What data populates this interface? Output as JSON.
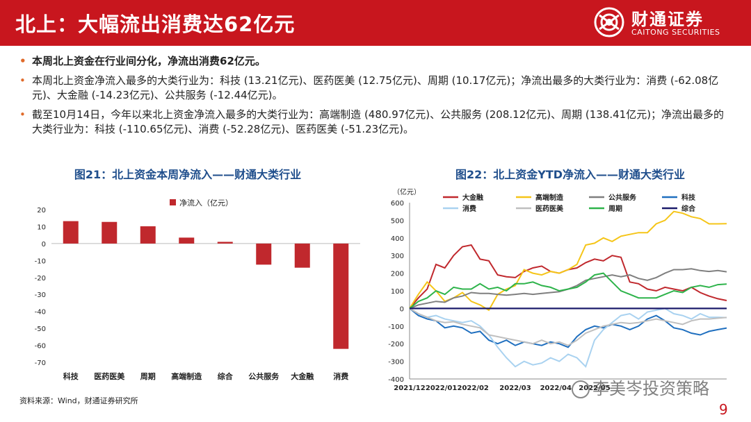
{
  "header": {
    "title": "北上：大幅流出消费达62亿元",
    "logo_text_cn": "财通证券",
    "logo_text_en": "CAITONG SECURITIES"
  },
  "bullets": [
    "本周北上资金在行业间分化，净流出消费62亿元。",
    "本周北上资金净流入最多的大类行业为：科技 (13.21亿元)、医药医美 (12.75亿元)、周期 (10.17亿元)；净流出最多的大类行业为：消费 (-62.08亿元)、大金融 (-14.23亿元)、公共服务 (-12.44亿元)。",
    "截至10月14日，今年以来北上资金净流入最多的大类行业为：高端制造 (480.97亿元)、公共服务 (208.12亿元)、周期 (138.41亿元)；净流出最多的大类行业为：科技 (-110.65亿元)、消费 (-52.28亿元)、医药医美 (-51.23亿元)。"
  ],
  "colors": {
    "brand_red": "#c8161e",
    "title_blue": "#1f4e8c",
    "bar": "#c0282d"
  },
  "chart_data": [
    {
      "type": "bar",
      "title": "图21：北上资金本周净流入——财通大类行业",
      "legend": "净流入（亿元）",
      "categories": [
        "科技",
        "医药医美",
        "周期",
        "高端制造",
        "综合",
        "公共服务",
        "大金融",
        "消费"
      ],
      "values": [
        13.21,
        12.75,
        10.17,
        3.5,
        1.0,
        -12.44,
        -14.23,
        -62.08
      ],
      "ylim": [
        -70,
        20
      ],
      "yticks": [
        20,
        10,
        0,
        -10,
        -20,
        -30,
        -40,
        -50,
        -60,
        -70
      ]
    },
    {
      "type": "line",
      "title": "图22：北上资金YTD净流入——财通大类行业",
      "yunit": "（亿元）",
      "ylim": [
        -400,
        600
      ],
      "yticks": [
        600,
        500,
        400,
        300,
        200,
        100,
        0,
        -100,
        -200,
        -300,
        -400
      ],
      "xticks": [
        "2021/12",
        "2022/01",
        "2022/02",
        "2022/03",
        "2022/04",
        "2022/05"
      ],
      "xtick_positions": [
        0,
        3.6,
        7.2,
        12,
        16.6,
        21
      ],
      "series": [
        {
          "name": "大金融",
          "color": "#c0282d",
          "values": [
            0,
            60,
            110,
            250,
            230,
            300,
            350,
            360,
            280,
            270,
            190,
            180,
            175,
            210,
            230,
            240,
            210,
            200,
            220,
            230,
            260,
            280,
            270,
            300,
            290,
            150,
            140,
            110,
            100,
            120,
            110,
            100,
            120,
            90,
            70,
            55,
            45
          ]
        },
        {
          "name": "高端制造",
          "color": "#f5c518",
          "values": [
            0,
            80,
            150,
            100,
            40,
            60,
            90,
            40,
            20,
            -10,
            80,
            110,
            130,
            220,
            200,
            190,
            210,
            200,
            220,
            250,
            360,
            370,
            400,
            380,
            410,
            420,
            430,
            430,
            480,
            500,
            550,
            540,
            520,
            510,
            480,
            480,
            481
          ]
        },
        {
          "name": "公共服务",
          "color": "#7f7f7f",
          "values": [
            0,
            20,
            30,
            40,
            35,
            60,
            70,
            90,
            85,
            85,
            80,
            75,
            80,
            85,
            80,
            85,
            90,
            95,
            110,
            130,
            160,
            170,
            180,
            190,
            180,
            190,
            170,
            160,
            175,
            200,
            220,
            220,
            225,
            215,
            210,
            215,
            208
          ]
        },
        {
          "name": "科技",
          "color": "#1f6fbf",
          "values": [
            0,
            -40,
            -60,
            -70,
            -110,
            -100,
            -110,
            -140,
            -130,
            -180,
            -200,
            -180,
            -210,
            -190,
            -200,
            -210,
            -190,
            -200,
            -220,
            -160,
            -120,
            -100,
            -110,
            -90,
            -100,
            -120,
            -100,
            -60,
            -40,
            -70,
            -110,
            -120,
            -140,
            -150,
            -130,
            -120,
            -111
          ]
        },
        {
          "name": "消费",
          "color": "#a9d2f0",
          "values": [
            0,
            -30,
            -50,
            -40,
            -60,
            -70,
            -80,
            -70,
            -100,
            -150,
            -220,
            -280,
            -330,
            -300,
            -320,
            -310,
            -280,
            -300,
            -260,
            -280,
            -330,
            -180,
            -120,
            -80,
            -40,
            -30,
            -60,
            -20,
            -10,
            0,
            -30,
            -40,
            -60,
            -30,
            -50,
            -50,
            -52
          ]
        },
        {
          "name": "医药医美",
          "color": "#bfbfbf",
          "values": [
            0,
            -30,
            -50,
            -70,
            -80,
            -75,
            -90,
            -100,
            -110,
            -150,
            -160,
            -170,
            -180,
            -190,
            -200,
            -180,
            -200,
            -190,
            -210,
            -180,
            -140,
            -120,
            -100,
            -90,
            -80,
            -85,
            -80,
            -70,
            -60,
            -70,
            -80,
            -90,
            -70,
            -60,
            -60,
            -55,
            -51
          ]
        },
        {
          "name": "周期",
          "color": "#2db34a",
          "values": [
            0,
            40,
            60,
            100,
            80,
            120,
            110,
            110,
            140,
            110,
            120,
            100,
            140,
            140,
            150,
            130,
            120,
            100,
            110,
            120,
            150,
            190,
            200,
            150,
            100,
            80,
            60,
            60,
            60,
            80,
            100,
            90,
            120,
            130,
            120,
            135,
            138
          ]
        },
        {
          "name": "综合",
          "color": "#1b1b6b",
          "values": [
            0,
            0,
            0,
            0,
            0,
            0,
            0,
            0,
            0,
            0,
            0,
            0,
            0,
            0,
            0,
            0,
            0,
            0,
            0,
            0,
            0,
            0,
            0,
            0,
            0,
            0,
            0,
            0,
            0,
            0,
            0,
            0,
            0,
            0,
            0,
            0,
            0
          ]
        }
      ]
    }
  ],
  "source": "资料来源：Wind，财通证券研究所",
  "watermark": "李美岑投资策略",
  "page_number": "9"
}
